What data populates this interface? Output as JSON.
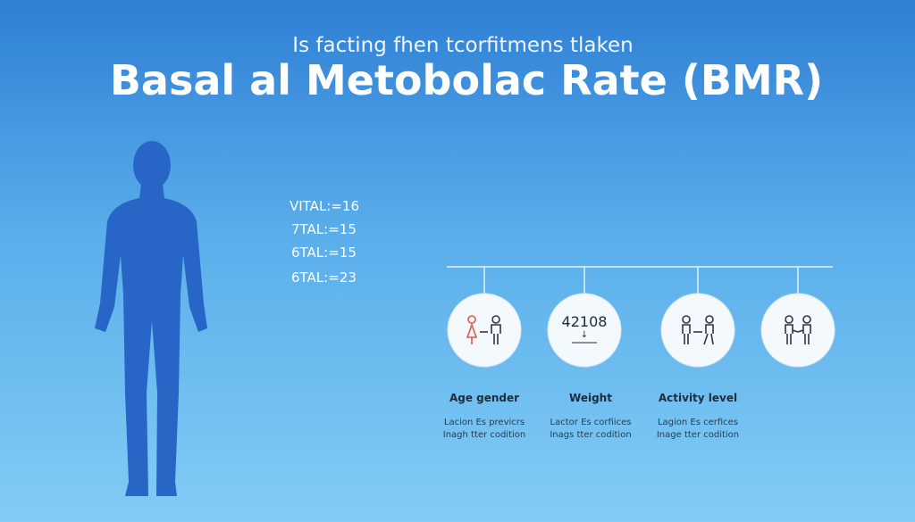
{
  "header": {
    "subtitle": "Is facting fhen tcorfitmens tlaken",
    "title": "Basal al Metobolac Rate (BMR)"
  },
  "stats": [
    "VITAL:=16",
    "7TAL:=15",
    "6TAL:=15",
    "6TAL:=23"
  ],
  "nodes": [
    {
      "label": "Age gender",
      "description": [
        "Lacion Es previcrs",
        "Inagh tter codition"
      ]
    },
    {
      "value": "42108",
      "arrow": "↓",
      "label": "Weight",
      "description": [
        "Lactor Es corfiices",
        "Inags tter codition"
      ]
    },
    {
      "label": "Activity level",
      "description": [
        "Lagion Es cerfices",
        "Inage tter codition"
      ]
    }
  ]
}
